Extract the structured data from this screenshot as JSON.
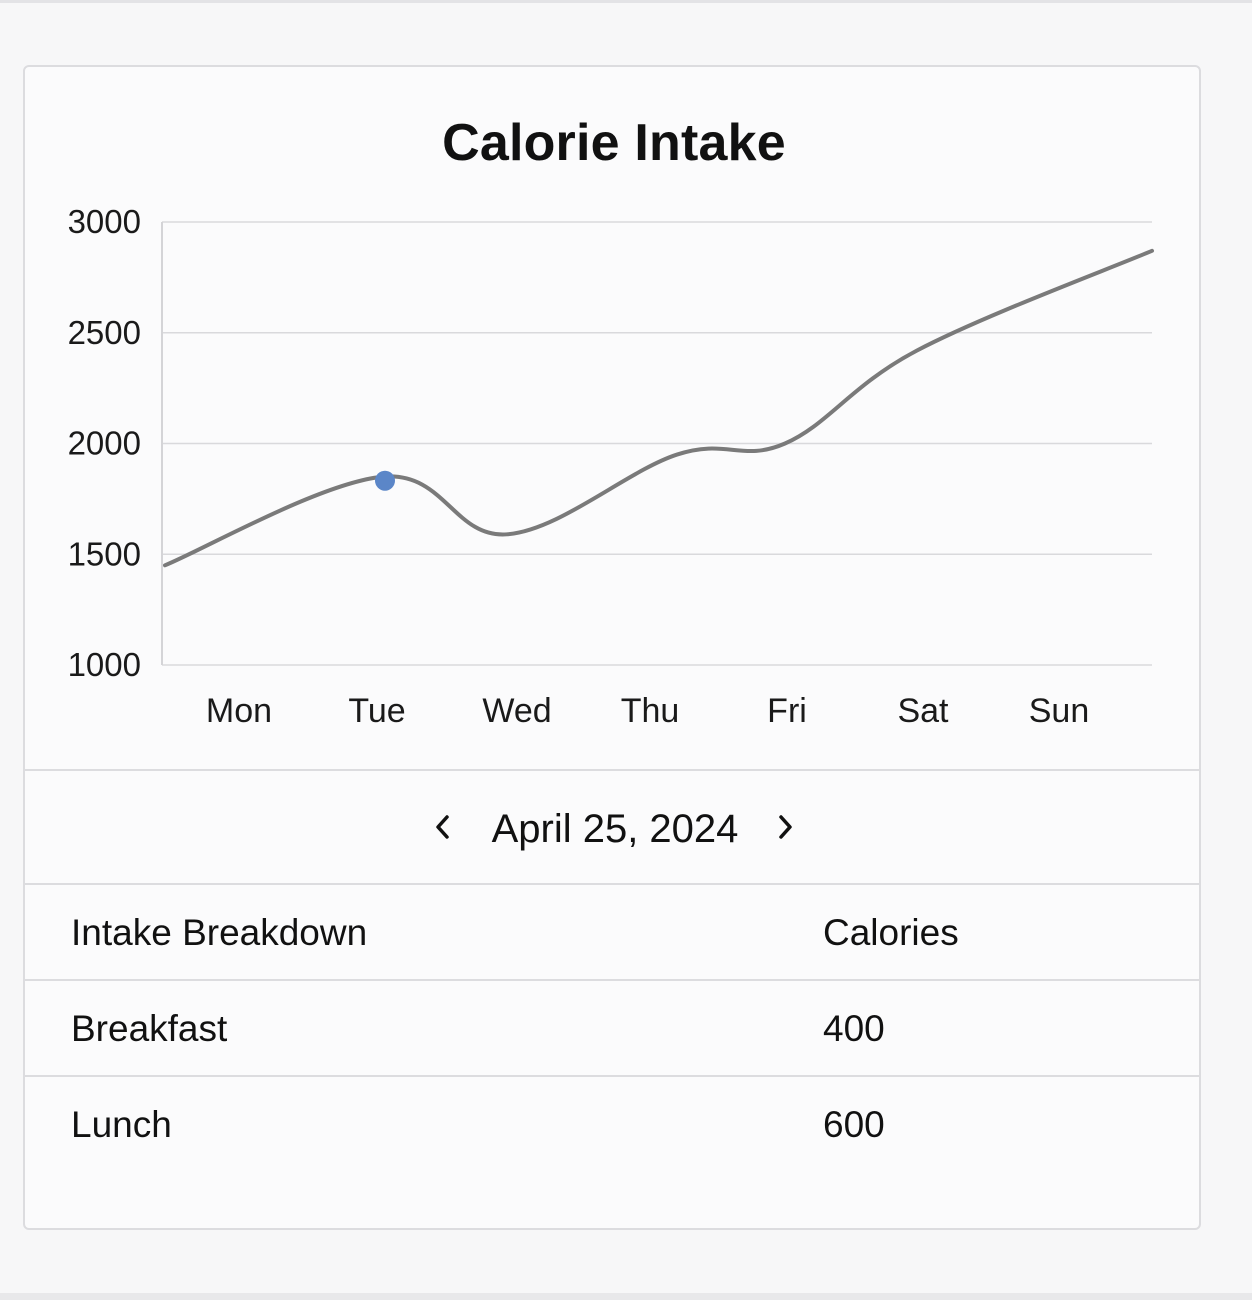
{
  "chart_data": {
    "type": "line",
    "title": "Calorie Intake",
    "categories": [
      "Mon",
      "Tue",
      "Wed",
      "Thu",
      "Fri",
      "Sat",
      "Sun"
    ],
    "series": [
      {
        "values": [
          1450,
          1850,
          1590,
          1950,
          2000,
          2420,
          2870
        ]
      }
    ],
    "highlighted_point": {
      "category": "Tue",
      "value": 1850
    },
    "ylim": [
      1000,
      3000
    ],
    "yticks": [
      3000,
      2500,
      2000,
      1500,
      1000
    ],
    "grid": true,
    "line_color": "#7a7a7a",
    "marker_color": "#5b86c8"
  },
  "date_nav": {
    "date": "April 25, 2024",
    "prev_icon": "chevron-left-icon",
    "next_icon": "chevron-right-icon"
  },
  "table": {
    "headers": [
      "Intake Breakdown",
      "Calories"
    ],
    "rows": [
      [
        "Breakfast",
        "400"
      ],
      [
        "Lunch",
        "600"
      ]
    ]
  }
}
